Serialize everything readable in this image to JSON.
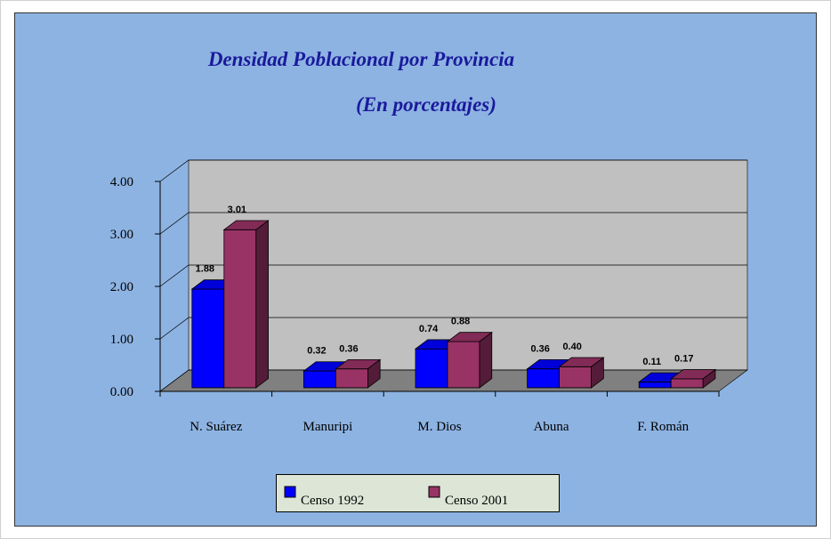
{
  "chart_data": {
    "type": "bar3d",
    "title": "Densidad Poblacional por Provincia",
    "subtitle": "(En porcentajes)",
    "categories": [
      "N. Suárez",
      "Manuripi",
      "M. Dios",
      "Abuna",
      "F. Román"
    ],
    "series": [
      {
        "name": "Censo 1992",
        "color": "#0000ff",
        "values": [
          1.88,
          0.32,
          0.74,
          0.36,
          0.11
        ],
        "value_labels": [
          "1.88",
          "0.32",
          "0.74",
          "0.36",
          "0.11"
        ]
      },
      {
        "name": "Censo 2001",
        "color": "#993366",
        "values": [
          3.01,
          0.36,
          0.88,
          0.4,
          0.17
        ],
        "value_labels": [
          "3.01",
          "0.36",
          "0.88",
          "0.40",
          "0.17"
        ]
      }
    ],
    "ylim": [
      0,
      4
    ],
    "yticks": [
      {
        "value": 0,
        "label": "0.00"
      },
      {
        "value": 1,
        "label": "1.00"
      },
      {
        "value": 2,
        "label": "2.00"
      },
      {
        "value": 3,
        "label": "3.00"
      },
      {
        "value": 4,
        "label": "4.00"
      }
    ],
    "grid": true,
    "legend": "bottom"
  }
}
